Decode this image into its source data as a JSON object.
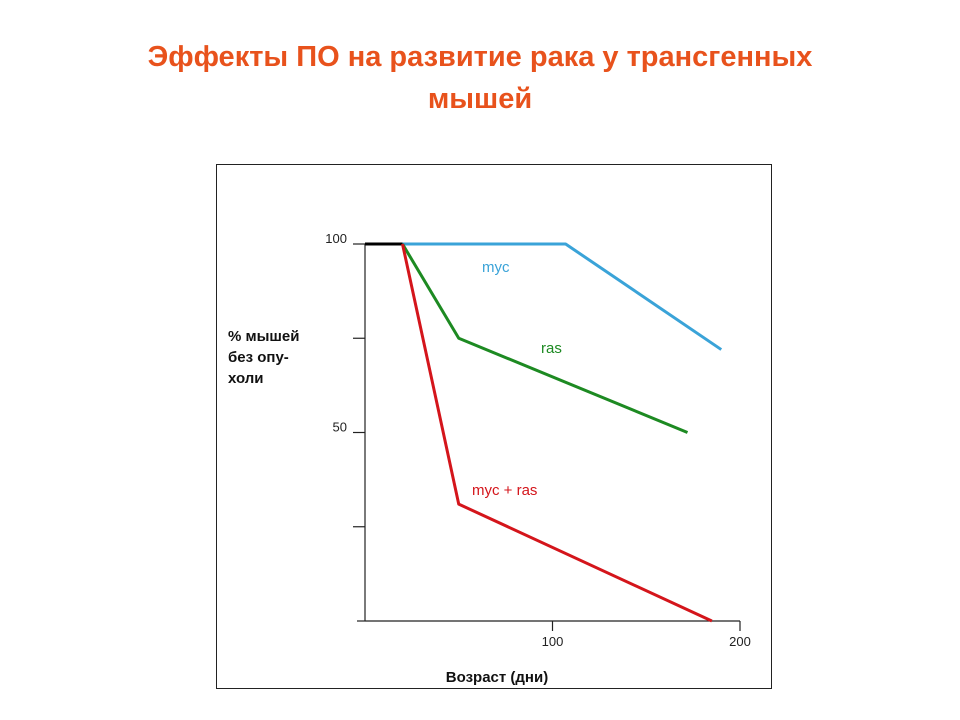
{
  "slide": {
    "title_line1": "Эффекты ПО на развитие рака у трансгенных",
    "title_line2": "мышей",
    "title_color": "#e8521c"
  },
  "chart_data": {
    "type": "line",
    "xlabel": "Возраст (дни)",
    "ylabel": [
      "% мышей",
      "без опу-",
      "холи"
    ],
    "xlim": [
      0,
      200
    ],
    "ylim": [
      0,
      100
    ],
    "x_ticks": [
      100,
      200
    ],
    "x_tick_labels": [
      "100",
      "200"
    ],
    "y_ticks": [
      25,
      50,
      75,
      100
    ],
    "y_tick_labels": [
      "",
      "50",
      "",
      "100"
    ],
    "grid": false,
    "baseline": {
      "x": [
        0,
        20
      ],
      "y": [
        100,
        100
      ],
      "color": "#000000"
    },
    "series": [
      {
        "name": "myc",
        "color": "#3aa3d8",
        "x": [
          20,
          107,
          190
        ],
        "y": [
          100,
          100,
          72
        ]
      },
      {
        "name": "ras",
        "color": "#1d8a22",
        "x": [
          20,
          50,
          172
        ],
        "y": [
          100,
          75,
          50
        ]
      },
      {
        "name": "myc + ras",
        "color": "#d4151b",
        "x": [
          20,
          50,
          185
        ],
        "y": [
          100,
          31,
          0
        ]
      }
    ]
  }
}
